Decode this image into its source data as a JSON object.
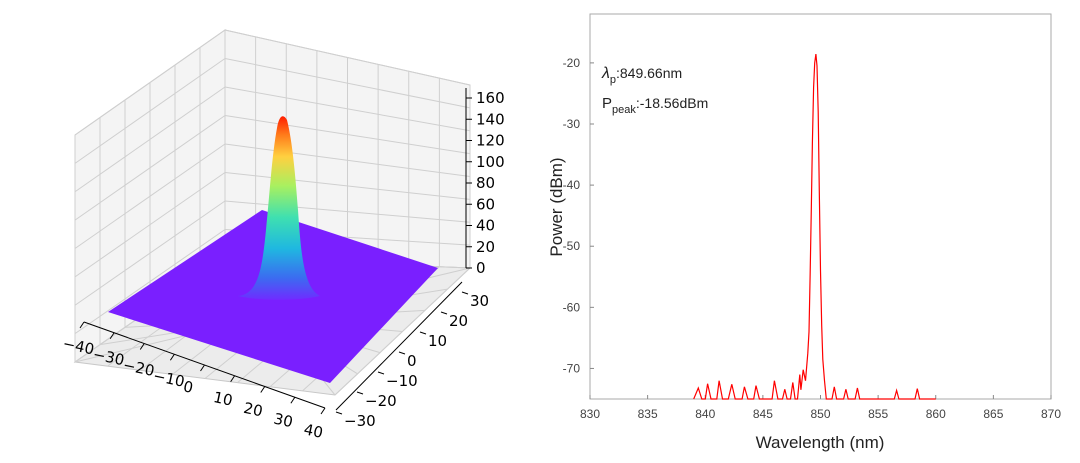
{
  "chart_data": [
    {
      "type": "surface3d",
      "title": "",
      "x_ticks": [
        "−40",
        "−30",
        "−20",
        "−10",
        "0",
        "10",
        "20",
        "30",
        "40"
      ],
      "y_ticks": [
        "30",
        "20",
        "10",
        "0",
        "−10",
        "−20",
        "−30"
      ],
      "z_ticks": [
        "0",
        "20",
        "40",
        "60",
        "80",
        "100",
        "120",
        "140",
        "160"
      ],
      "xlim": [
        -40,
        40
      ],
      "ylim": [
        -30,
        30
      ],
      "zlim": [
        0,
        160
      ],
      "grid": true,
      "colormap": "rainbow",
      "surface": {
        "shape": "gaussian",
        "center_x": 0,
        "center_y": 0,
        "peak_z": 147,
        "base_z": 0
      }
    },
    {
      "type": "line",
      "title": "",
      "xlabel": "Wavelength (nm)",
      "ylabel": "Power (dBm)",
      "xlim": [
        830,
        870
      ],
      "ylim": [
        -75,
        -12
      ],
      "x_ticks": [
        "830",
        "835",
        "840",
        "845",
        "850",
        "855",
        "860",
        "865",
        "870"
      ],
      "y_ticks": [
        "-20",
        "-30",
        "-40",
        "-50",
        "-60",
        "-70"
      ],
      "line_color": "#ff0000",
      "grid": false,
      "annotations": {
        "lambda_symbol": "λ",
        "lambda_sub": "p",
        "lambda_value": ":849.66nm",
        "ppeak_symbol": "P",
        "ppeak_sub": "peak",
        "ppeak_value": ":-18.56dBm"
      },
      "series": [
        {
          "values": [
            [
              839.0,
              -75
            ],
            [
              839.4,
              -73.2
            ],
            [
              839.7,
              -75
            ],
            [
              840.0,
              -75
            ],
            [
              840.2,
              -72.5
            ],
            [
              840.5,
              -75
            ],
            [
              841.0,
              -75
            ],
            [
              841.2,
              -72.0
            ],
            [
              841.5,
              -75
            ],
            [
              842.0,
              -75
            ],
            [
              842.3,
              -72.6
            ],
            [
              842.6,
              -75
            ],
            [
              843.2,
              -75
            ],
            [
              843.4,
              -73.0
            ],
            [
              843.7,
              -75
            ],
            [
              844.2,
              -75
            ],
            [
              844.4,
              -72.8
            ],
            [
              844.7,
              -75
            ],
            [
              845.8,
              -75
            ],
            [
              846.0,
              -72.0
            ],
            [
              846.3,
              -75
            ],
            [
              846.7,
              -75
            ],
            [
              846.9,
              -73.4
            ],
            [
              847.1,
              -75
            ],
            [
              847.4,
              -75
            ],
            [
              847.6,
              -72.3
            ],
            [
              847.8,
              -75
            ],
            [
              848.0,
              -75
            ],
            [
              848.2,
              -71.0
            ],
            [
              848.3,
              -73.5
            ],
            [
              848.5,
              -70.2
            ],
            [
              848.7,
              -72.0
            ],
            [
              848.9,
              -67.5
            ],
            [
              849.0,
              -64.0
            ],
            [
              849.1,
              -55.0
            ],
            [
              849.2,
              -44.0
            ],
            [
              849.3,
              -33.0
            ],
            [
              849.4,
              -24.0
            ],
            [
              849.5,
              -20.0
            ],
            [
              849.6,
              -18.56
            ],
            [
              849.7,
              -20.5
            ],
            [
              849.8,
              -28.0
            ],
            [
              849.9,
              -41.0
            ],
            [
              850.0,
              -54.0
            ],
            [
              850.1,
              -63.0
            ],
            [
              850.2,
              -68.5
            ],
            [
              850.35,
              -72.0
            ],
            [
              850.5,
              -75
            ],
            [
              851.0,
              -75
            ],
            [
              851.2,
              -73.0
            ],
            [
              851.4,
              -75
            ],
            [
              852.0,
              -75
            ],
            [
              852.2,
              -73.4
            ],
            [
              852.4,
              -75
            ],
            [
              853.0,
              -75
            ],
            [
              853.2,
              -73.2
            ],
            [
              853.4,
              -75
            ],
            [
              856.4,
              -75
            ],
            [
              856.6,
              -73.6
            ],
            [
              856.8,
              -75
            ],
            [
              858.2,
              -75
            ],
            [
              858.4,
              -73.3
            ],
            [
              858.6,
              -75
            ],
            [
              860.0,
              -75
            ]
          ]
        }
      ]
    }
  ]
}
